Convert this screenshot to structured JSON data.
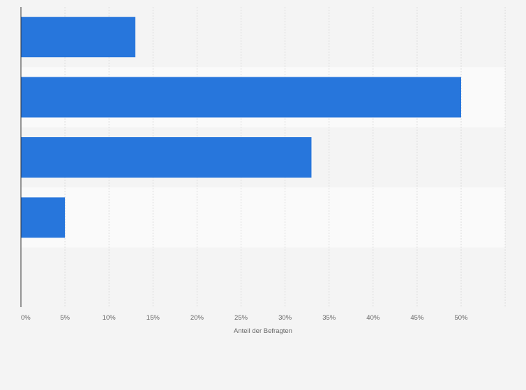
{
  "chart_data": {
    "type": "bar",
    "orientation": "horizontal",
    "title": "",
    "categories": [
      "",
      "",
      "",
      "",
      ""
    ],
    "values": [
      13,
      50,
      33,
      5,
      null
    ],
    "xlabel": "Anteil der Befragten",
    "ylabel": "",
    "xlim": [
      0,
      55
    ],
    "xticks": [
      0,
      5,
      10,
      15,
      20,
      25,
      30,
      35,
      40,
      45,
      50
    ],
    "tick_suffix": "%",
    "grid": true,
    "legend": "none",
    "bar_color": "#2776dc",
    "band_colors": [
      "#f4f4f4",
      "#fafafa"
    ],
    "gridline_color": "#dcdcdc",
    "axis_color": "#333333"
  }
}
